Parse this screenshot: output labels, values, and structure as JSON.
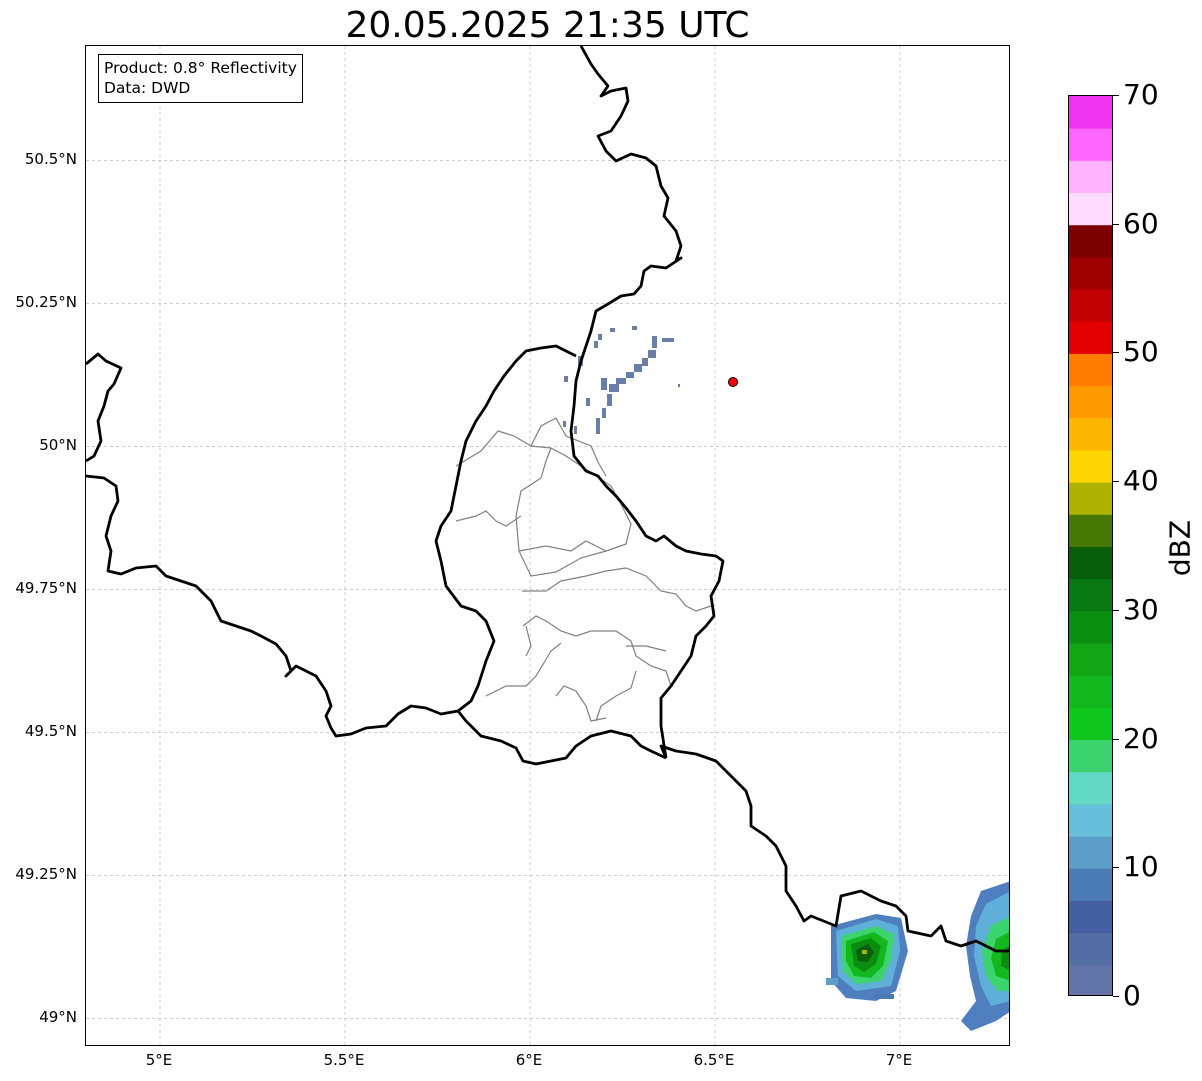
{
  "title": "20.05.2025 21:35 UTC",
  "info": {
    "product": "Product: 0.8° Reflectivity",
    "source": "Data: DWD"
  },
  "map": {
    "lon_range": [
      4.8,
      7.3
    ],
    "lat_range": [
      48.95,
      50.7
    ],
    "lat_ticks": [
      {
        "value": 50.5,
        "label": "50.5°N"
      },
      {
        "value": 50.25,
        "label": "50.25°N"
      },
      {
        "value": 50.0,
        "label": "50°N"
      },
      {
        "value": 49.75,
        "label": "49.75°N"
      },
      {
        "value": 49.5,
        "label": "49.5°N"
      },
      {
        "value": 49.25,
        "label": "49.25°N"
      },
      {
        "value": 49.0,
        "label": "49°N"
      }
    ],
    "lon_ticks": [
      {
        "value": 5.0,
        "label": "5°E"
      },
      {
        "value": 5.5,
        "label": "5.5°E"
      },
      {
        "value": 6.0,
        "label": "6°E"
      },
      {
        "value": 6.5,
        "label": "6.5°E"
      },
      {
        "value": 7.0,
        "label": "7°E"
      }
    ],
    "gridlines": true,
    "radar_site": {
      "lon": 6.55,
      "lat": 50.11,
      "color": "#ff0000"
    }
  },
  "colorbar": {
    "label": "dBZ",
    "min": 0,
    "max": 70,
    "step": 2.5,
    "ticks": [
      {
        "value": 0,
        "label": "0"
      },
      {
        "value": 10,
        "label": "10"
      },
      {
        "value": 20,
        "label": "20"
      },
      {
        "value": 30,
        "label": "30"
      },
      {
        "value": 40,
        "label": "40"
      },
      {
        "value": 50,
        "label": "50"
      },
      {
        "value": 60,
        "label": "60"
      },
      {
        "value": 70,
        "label": "70"
      }
    ],
    "colors": [
      "#6274a7",
      "#536ea3",
      "#4460a3",
      "#4a7ab3",
      "#5c9ec8",
      "#66c0dc",
      "#63d8c4",
      "#3dd36f",
      "#10c71f",
      "#13b81f",
      "#12a515",
      "#0b8d10",
      "#097812",
      "#075e0b",
      "#477805",
      "#aeb200",
      "#fdd500",
      "#fdb700",
      "#fe9a00",
      "#fe7d00",
      "#e50000",
      "#c10000",
      "#a10000",
      "#7d0000",
      "#ffdcff",
      "#ffb2ff",
      "#ff66ff",
      "#ee34ee"
    ]
  }
}
